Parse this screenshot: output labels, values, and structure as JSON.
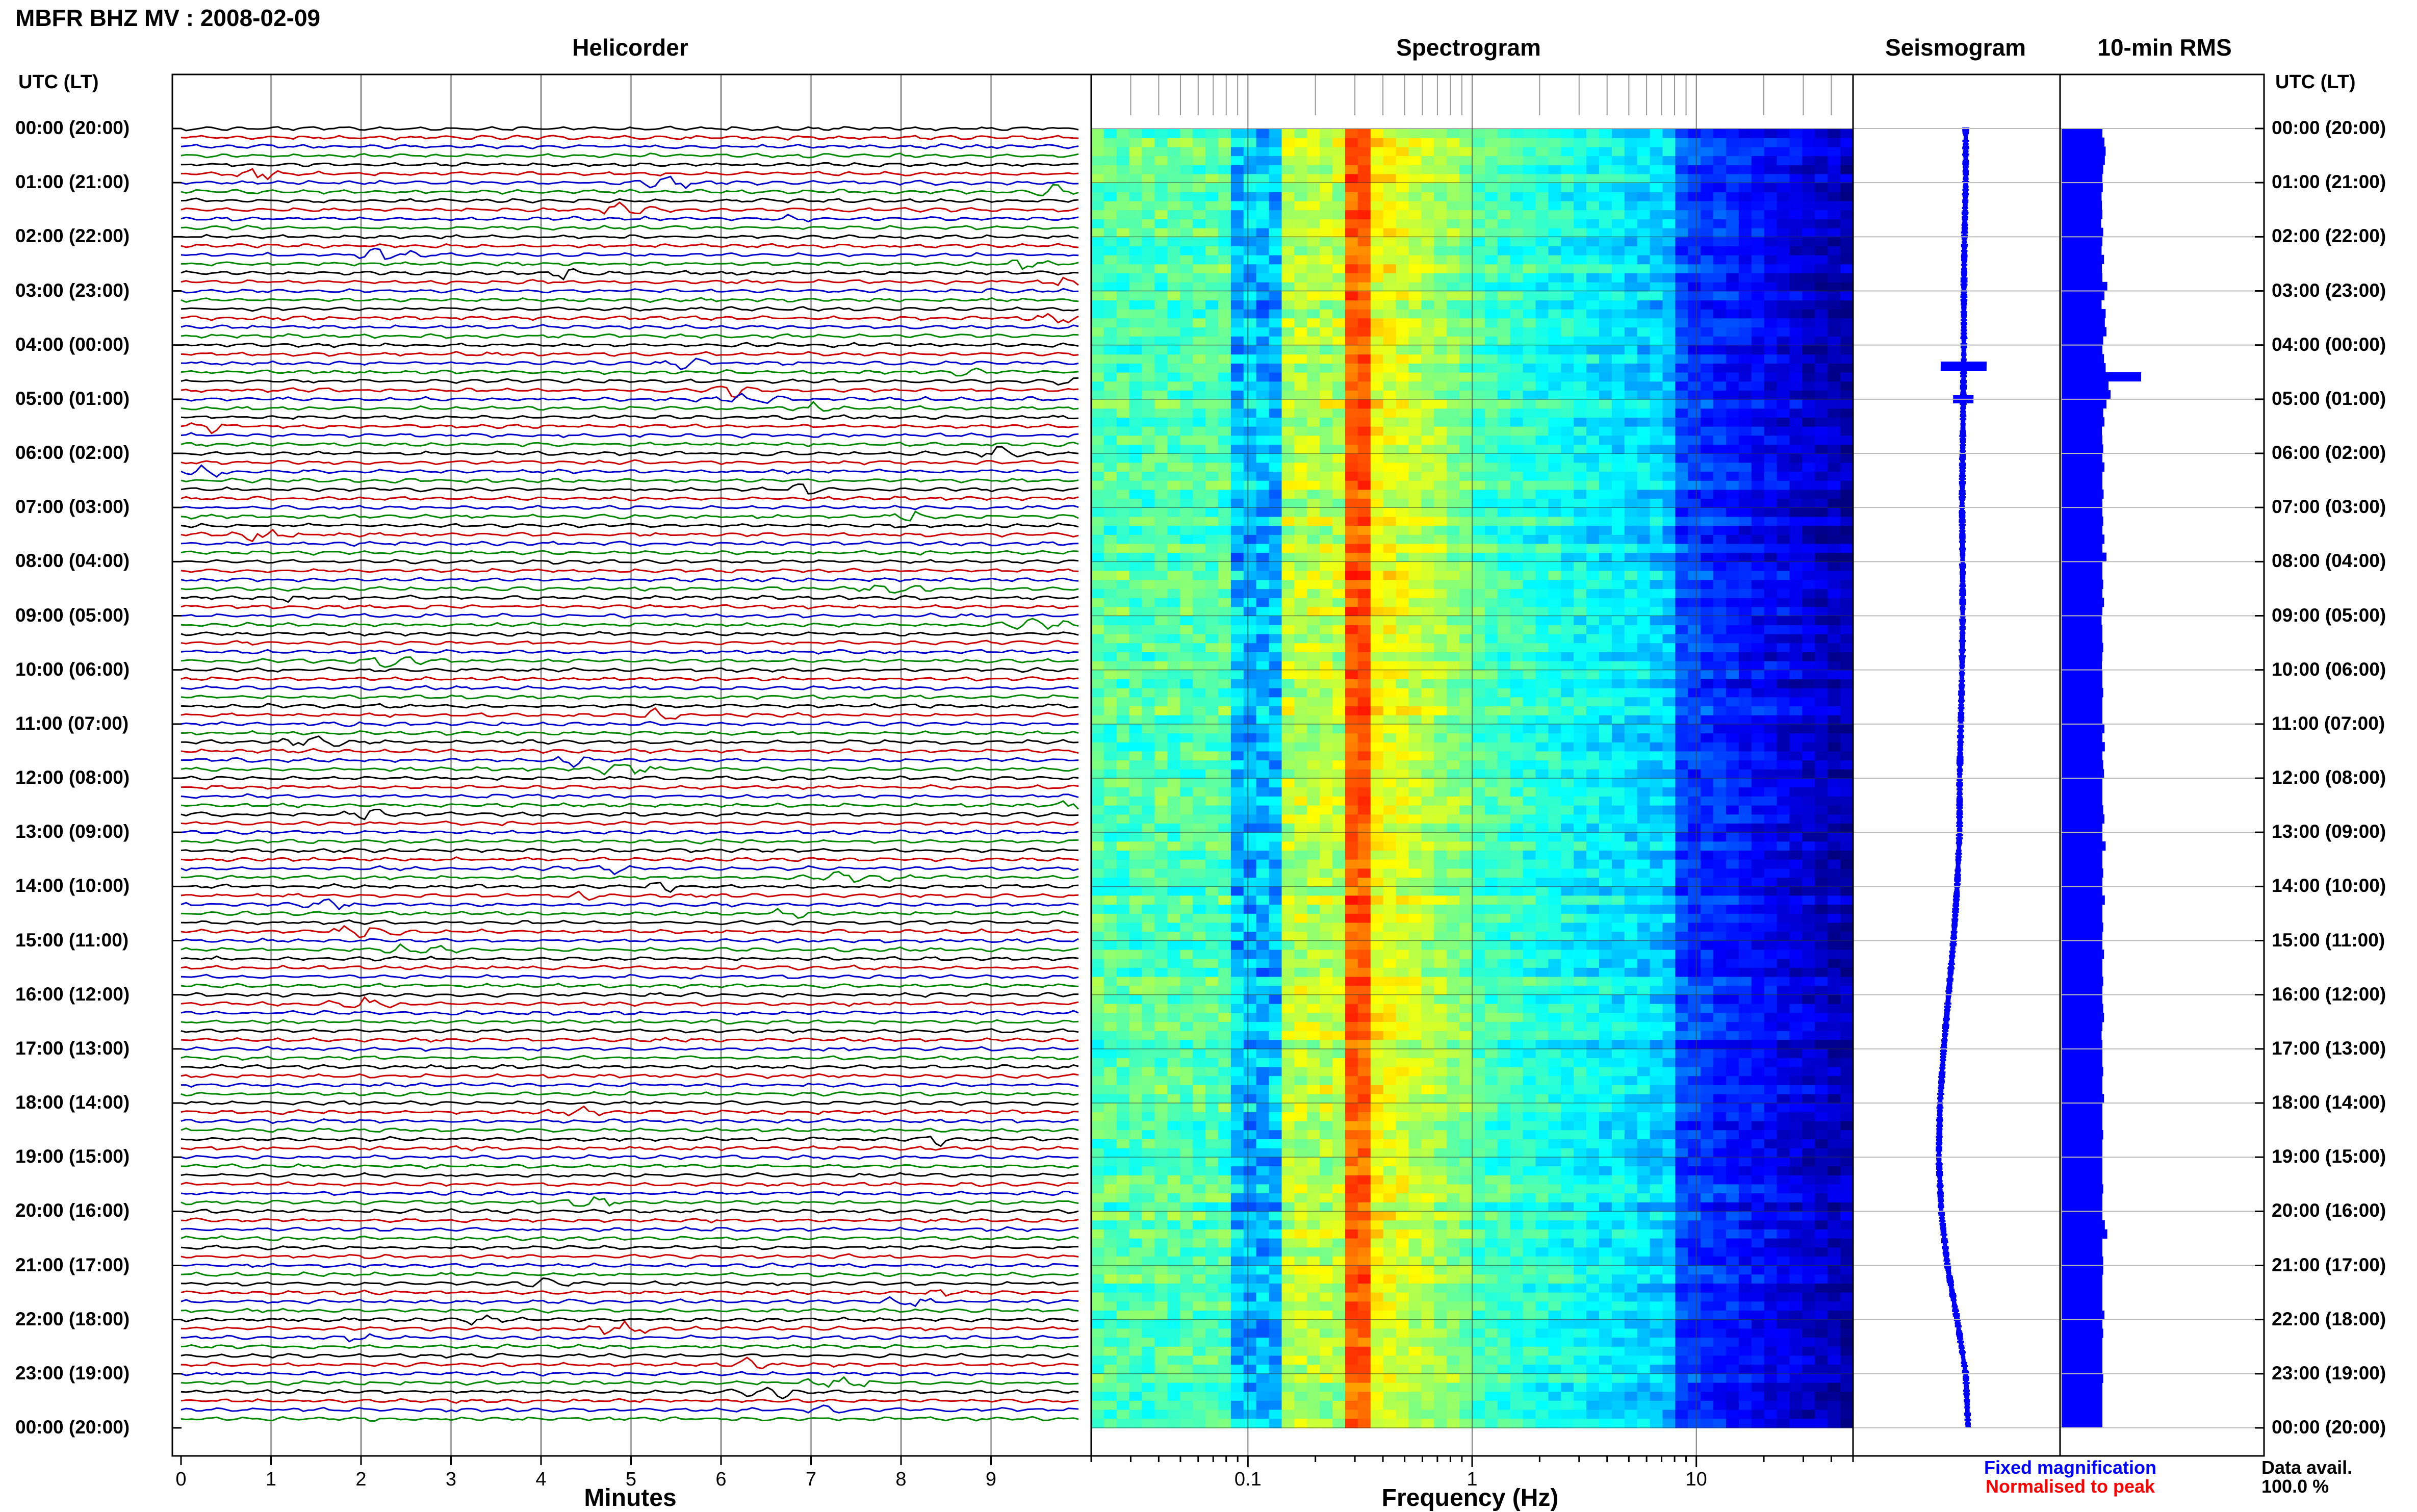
{
  "page_title": "MBFR BHZ MV : 2008-02-09",
  "panels": {
    "helicorder": "Helicorder",
    "spectrogram": "Spectrogram",
    "seismogram": "Seismogram",
    "rms": "10-min RMS"
  },
  "axes": {
    "time_header_left": "UTC (LT)",
    "time_header_right": "UTC (LT)",
    "helicorder_xlabel": "Minutes",
    "spectrogram_xlabel": "Frequency (Hz)"
  },
  "legend": {
    "fixed": "Fixed magnification",
    "normalised": "Normalised to peak",
    "fixed_color": "#0000ff",
    "normalised_color": "#ff0000"
  },
  "data_avail": {
    "label": "Data avail.",
    "value": "100.0 %"
  },
  "chart_data": {
    "type": "heatmap",
    "time_labels": [
      "00:00 (20:00)",
      "01:00 (21:00)",
      "02:00 (22:00)",
      "03:00 (23:00)",
      "04:00 (00:00)",
      "05:00 (01:00)",
      "06:00 (02:00)",
      "07:00 (03:00)",
      "08:00 (04:00)",
      "09:00 (05:00)",
      "10:00 (06:00)",
      "11:00 (07:00)",
      "12:00 (08:00)",
      "13:00 (09:00)",
      "14:00 (10:00)",
      "15:00 (11:00)",
      "16:00 (12:00)",
      "17:00 (13:00)",
      "18:00 (14:00)",
      "19:00 (15:00)",
      "20:00 (16:00)",
      "21:00 (17:00)",
      "22:00 (18:00)",
      "23:00 (19:00)",
      "00:00 (20:00)"
    ],
    "helicorder": {
      "minute_ticks": [
        "0",
        "1",
        "2",
        "3",
        "4",
        "5",
        "6",
        "7",
        "8",
        "9"
      ],
      "minutes_range": [
        0,
        10
      ],
      "lines_per_hour": 6,
      "trace_colors": [
        "#000000",
        "#cc0000",
        "#0000cc",
        "#008800"
      ]
    },
    "spectrogram": {
      "freq_ticks": [
        "0.1",
        "1",
        "10"
      ],
      "freq_range": [
        0.02,
        50
      ],
      "log_scale": true
    },
    "seismogram": {
      "color": "#0000ff",
      "hours": [
        0,
        1,
        2,
        3,
        4,
        5,
        6,
        7,
        8,
        9,
        10,
        11,
        12,
        13,
        14,
        15,
        16,
        17,
        18,
        19,
        20,
        21,
        22,
        23,
        24
      ],
      "offset": [
        0.0,
        0.0,
        -0.02,
        -0.03,
        -0.03,
        -0.04,
        -0.05,
        -0.06,
        -0.05,
        -0.05,
        -0.06,
        -0.08,
        -0.1,
        -0.1,
        -0.14,
        -0.2,
        -0.28,
        -0.36,
        -0.42,
        -0.44,
        -0.4,
        -0.3,
        -0.14,
        0.0,
        0.04
      ]
    },
    "rms": {
      "color": "#0000ff",
      "values": [
        1.0,
        1.05,
        1.08,
        1.06,
        1.02,
        1.0,
        1.01,
        0.98,
        0.99,
        1.0,
        0.97,
        1.02,
        1.0,
        0.98,
        1.04,
        0.99,
        1.0,
        1.12,
        1.05,
        0.98,
        1.08,
        1.06,
        1.1,
        1.02,
        1.0,
        1.04,
        1.08,
        1.95,
        1.15,
        1.2,
        1.1,
        1.02,
        1.05,
        0.99,
        1.0,
        1.02,
        1.0,
        1.05,
        1.0,
        1.0,
        1.03,
        1.0,
        1.0,
        1.02,
        1.0,
        1.05,
        1.0,
        1.1,
        1.0,
        1.0,
        1.02,
        1.0,
        1.04,
        1.0,
        0.98,
        1.0,
        1.0,
        1.02,
        1.0,
        0.99,
        1.0,
        1.0,
        1.02,
        1.0,
        1.0,
        1.0,
        1.05,
        1.0,
        1.06,
        1.0,
        1.02,
        1.04,
        1.0,
        1.0,
        1.0,
        1.02,
        1.05,
        1.0,
        1.0,
        1.08,
        1.0,
        1.0,
        1.02,
        1.0,
        1.0,
        1.06,
        1.0,
        1.0,
        1.02,
        1.0,
        1.0,
        1.04,
        1.0,
        1.0,
        1.02,
        1.0,
        1.0,
        1.02,
        1.04,
        1.0,
        0.98,
        1.0,
        1.0,
        1.0,
        1.02,
        1.0,
        1.0,
        1.04,
        1.0,
        1.0,
        1.0,
        1.02,
        1.0,
        1.0,
        1.0,
        1.0,
        1.0,
        1.02,
        1.0,
        1.0,
        1.0,
        1.06,
        1.12,
        1.0,
        1.0,
        1.02,
        1.02,
        1.0,
        1.0,
        1.0,
        1.0,
        1.05,
        1.0,
        1.02,
        1.0,
        1.0,
        1.0,
        1.0,
        1.02,
        1.0,
        1.0,
        1.0,
        1.0,
        1.0
      ],
      "range": [
        0,
        2.5
      ]
    }
  }
}
